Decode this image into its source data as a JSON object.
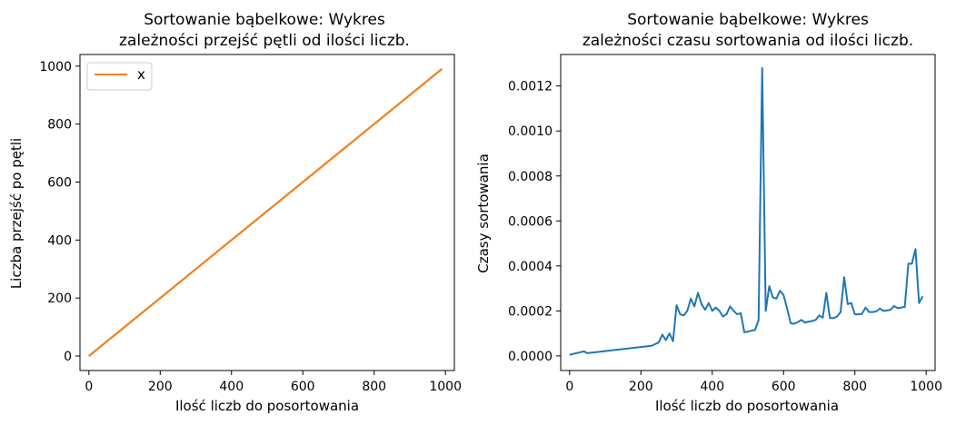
{
  "colors": {
    "blue": "#1f77b4",
    "orange": "#ff7f0e"
  },
  "chart_data": [
    {
      "type": "line",
      "title_lines": [
        "Sortowanie bąbelkowe: Wykres",
        "zależności przejść  pętli od ilości liczb."
      ],
      "xlabel": "Ilość liczb do posortowania",
      "ylabel": "Liczba przejść po pętli",
      "xlim": [
        -25,
        1025
      ],
      "ylim": [
        -50,
        1040
      ],
      "xticks": [
        0,
        200,
        400,
        600,
        800,
        1000
      ],
      "yticks": [
        0,
        200,
        400,
        600,
        800,
        1000
      ],
      "grid": false,
      "legend": {
        "position": "top-left",
        "entries": [
          "x"
        ]
      },
      "series": [
        {
          "name": "",
          "color": "#1f77b4",
          "x": [
            0,
            990
          ],
          "y": [
            0,
            990
          ]
        },
        {
          "name": "x",
          "color": "#ff7f0e",
          "x": [
            0,
            990
          ],
          "y": [
            0,
            990
          ]
        }
      ]
    },
    {
      "type": "line",
      "title_lines": [
        "Sortowanie bąbelkowe: Wykres",
        "zależności czasu sortowania od ilości liczb."
      ],
      "xlabel": "Ilość liczb do posortowania",
      "ylabel": "Czasy sortowania",
      "xlim": [
        -25,
        1025
      ],
      "ylim": [
        -6.5e-05,
        0.00134
      ],
      "xticks": [
        0,
        200,
        400,
        600,
        800,
        1000
      ],
      "yticks": [
        "0.0000",
        "0.0002",
        "0.0004",
        "0.0006",
        "0.0008",
        "0.0010",
        "0.0012"
      ],
      "grid": false,
      "series": [
        {
          "name": "",
          "color": "#1f77b4",
          "x": [
            0,
            40,
            50,
            230,
            250,
            260,
            270,
            280,
            290,
            300,
            310,
            320,
            330,
            340,
            350,
            360,
            370,
            380,
            390,
            400,
            410,
            420,
            430,
            440,
            450,
            460,
            470,
            480,
            490,
            500,
            510,
            520,
            530,
            540,
            550,
            560,
            570,
            580,
            590,
            600,
            610,
            620,
            630,
            640,
            650,
            660,
            670,
            680,
            690,
            700,
            710,
            720,
            730,
            740,
            750,
            760,
            770,
            780,
            790,
            800,
            810,
            820,
            830,
            840,
            850,
            860,
            870,
            880,
            890,
            900,
            910,
            920,
            930,
            940,
            950,
            960,
            970,
            980,
            990
          ],
          "y": [
            5e-06,
            2e-05,
            1.2e-05,
            4.5e-05,
            6e-05,
            9.5e-05,
            7e-05,
            0.0001,
            6.5e-05,
            0.000225,
            0.000185,
            0.00018,
            0.0002,
            0.000255,
            0.00022,
            0.00028,
            0.00023,
            0.000205,
            0.000235,
            0.0002,
            0.000215,
            0.0002,
            0.000175,
            0.000185,
            0.00022,
            0.0002,
            0.000185,
            0.00019,
            0.000105,
            0.000108,
            0.000112,
            0.000115,
            0.00016,
            0.00128,
            0.0002,
            0.00031,
            0.00026,
            0.000255,
            0.00029,
            0.00027,
            0.00021,
            0.000145,
            0.000143,
            0.00015,
            0.00016,
            0.000148,
            0.000152,
            0.000155,
            0.00016,
            0.00018,
            0.00017,
            0.00028,
            0.000168,
            0.000168,
            0.000175,
            0.000195,
            0.00035,
            0.00023,
            0.000235,
            0.000185,
            0.000185,
            0.000187,
            0.000215,
            0.000195,
            0.000195,
            0.000198,
            0.00021,
            0.0002,
            0.000202,
            0.000205,
            0.000222,
            0.000212,
            0.000215,
            0.000218,
            0.00041,
            0.00041,
            0.000475,
            0.000235,
            0.000265
          ]
        }
      ]
    }
  ]
}
